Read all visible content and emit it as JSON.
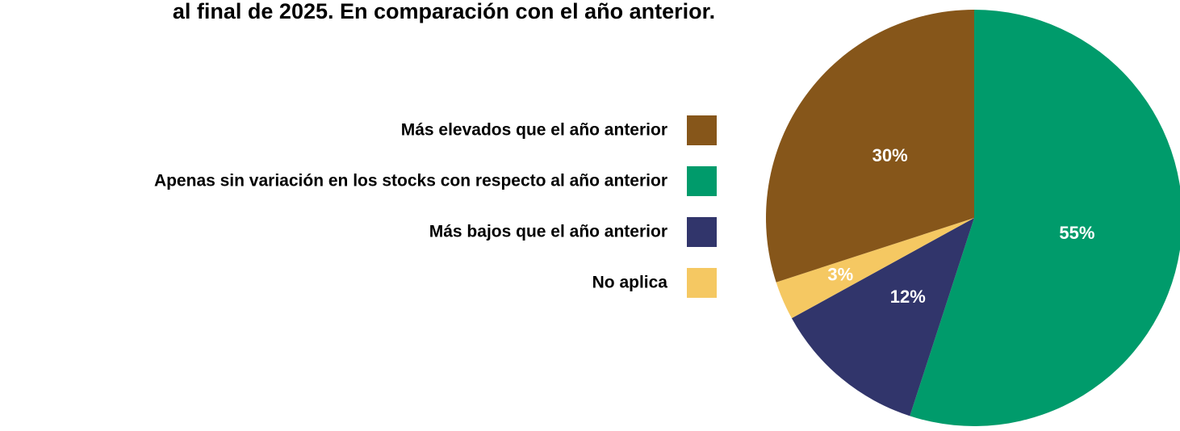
{
  "chart_data": {
    "type": "pie",
    "title": "al final de 2025. En comparación con el año anterior.",
    "categories": [
      "Más elevados que el año anterior",
      "Apenas sin variación en los stocks con respecto al año anterior",
      "Más bajos que el año anterior",
      "No aplica"
    ],
    "values": [
      30,
      55,
      12,
      3
    ],
    "value_labels": [
      "30%",
      "55%",
      "12%",
      "3%"
    ],
    "colors": [
      "#86561a",
      "#009b6b",
      "#31356b",
      "#f5c862"
    ],
    "legend": "left"
  }
}
